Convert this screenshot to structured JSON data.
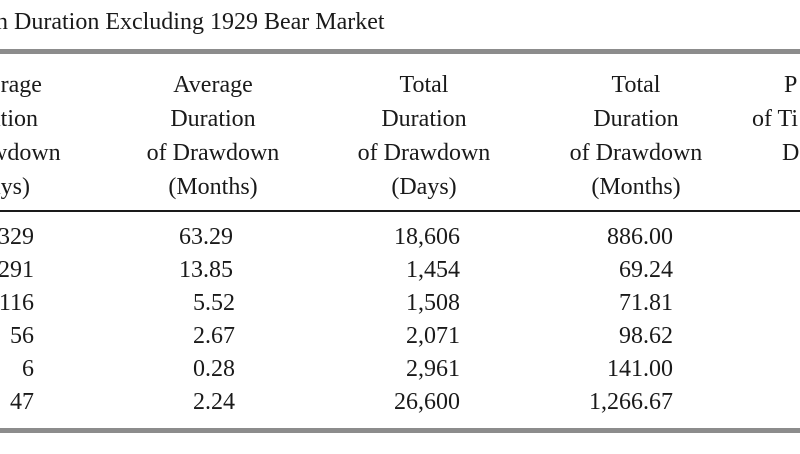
{
  "table": {
    "title": "n Duration Excluding 1929 Bear Market",
    "columns": [
      {
        "lines": [
          "erage",
          "ation",
          "wdown",
          "ays)"
        ]
      },
      {
        "lines": [
          "Average",
          "Duration",
          "of Drawdown",
          "(Months)"
        ]
      },
      {
        "lines": [
          "Total",
          "Duration",
          "of Drawdown",
          "(Days)"
        ]
      },
      {
        "lines": [
          "Total",
          "Duration",
          "of Drawdown",
          "(Months)"
        ]
      },
      {
        "lines": [
          "P",
          "of Ti",
          "D"
        ]
      }
    ],
    "rows": [
      [
        "329",
        "63.29",
        "18,606",
        "886.00"
      ],
      [
        "291",
        "13.85",
        "1,454",
        "69.24"
      ],
      [
        "116",
        "5.52",
        "1,508",
        "71.81"
      ],
      [
        "56",
        "2.67",
        "2,071",
        "98.62"
      ],
      [
        "6",
        "0.28",
        "2,961",
        "141.00"
      ],
      [
        "47",
        "2.24",
        "26,600",
        "1,266.67"
      ]
    ]
  }
}
